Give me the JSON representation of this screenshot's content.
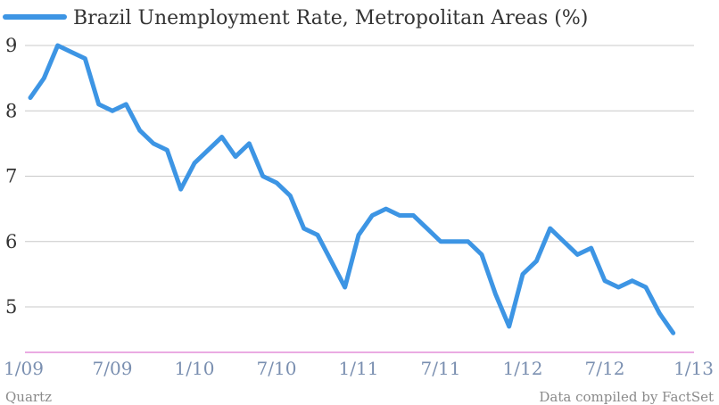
{
  "chart_data": {
    "type": "line",
    "title": "Brazil Unemployment Rate, Metropolitan Areas (%)",
    "xlabel": "",
    "ylabel": "",
    "ylim": [
      4.3,
      9.3
    ],
    "yticks": [
      "9",
      "8",
      "7",
      "6",
      "5"
    ],
    "ytick_values": [
      9,
      8,
      7,
      6,
      5
    ],
    "xtick_labels": [
      "1/09",
      "7/09",
      "1/10",
      "7/10",
      "1/11",
      "7/11",
      "1/12",
      "7/12",
      "1/13"
    ],
    "xtick_months": [
      0,
      6,
      12,
      18,
      24,
      30,
      36,
      42,
      48
    ],
    "x_months_per_point": 1,
    "grid": true,
    "legend_position": "top-left",
    "series": [
      {
        "name": "Brazil Unemployment Rate, Metropolitan Areas (%)",
        "color": "#3d95e4",
        "values": [
          8.2,
          8.5,
          9.0,
          8.9,
          8.8,
          8.1,
          8.0,
          8.1,
          7.7,
          7.5,
          7.4,
          6.8,
          7.2,
          7.4,
          7.6,
          7.3,
          7.5,
          7.0,
          6.9,
          6.7,
          6.2,
          6.1,
          5.7,
          5.3,
          6.1,
          6.4,
          6.5,
          6.4,
          6.4,
          6.2,
          6.0,
          6.0,
          6.0,
          5.8,
          5.2,
          4.7,
          5.5,
          5.7,
          6.2,
          6.0,
          5.8,
          5.9,
          5.4,
          5.3,
          5.4,
          5.3,
          4.9,
          4.6
        ]
      }
    ]
  },
  "footer": {
    "source_left": "Quartz",
    "source_right": "Data compiled by FactSet"
  }
}
